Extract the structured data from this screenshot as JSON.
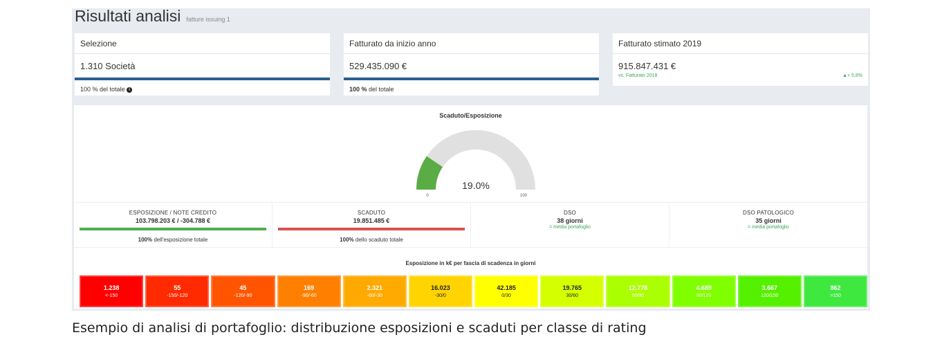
{
  "header": {
    "title": "Risultati analisi",
    "subtitle": "fatture issuing 1"
  },
  "cards": [
    {
      "head": "Selezione",
      "value": "1.310 Società",
      "foot_bold": "",
      "foot": "100 % del totale",
      "has_info": true,
      "bar": true
    },
    {
      "head": "Fatturato da inizio anno",
      "value": "529.435.090 €",
      "foot_bold": "100 %",
      "foot": " del totale",
      "has_info": false,
      "bar": true
    },
    {
      "head": "Fatturato stimato 2019",
      "value": "915.847.431 €",
      "sub_left": "vs. Fatturato 2018",
      "sub_right": "▲+ 5,8%"
    }
  ],
  "gauge": {
    "title": "Scaduto/Esposizione",
    "value_label": "19.0%",
    "value": 19.0,
    "min_label": "0",
    "max_label": "100",
    "fill_color": "#5aac44",
    "track_color": "#e0e0e0"
  },
  "metrics": [
    {
      "label": "ESPOSIZIONE / NOTE CREDITO",
      "value": "103.798.203 € / -304.788 €",
      "bar_color": "#4caf50",
      "foot_bold": "100%",
      "foot": " dell'esposizione totale"
    },
    {
      "label": "SCADUTO",
      "value": "19.851.485 €",
      "bar_color": "#d9534f",
      "foot_bold": "100%",
      "foot": " dello scaduto totale"
    },
    {
      "label": "DSO",
      "value": "38 giorni",
      "note": "= media portafoglio"
    },
    {
      "label": "DSO PATOLOGICO",
      "value": "35 giorni",
      "note": "= media portafoglio"
    }
  ],
  "buckets_title": "Esposizione in k€ per fascia di scadenza in giorni",
  "buckets": [
    {
      "value": "1.238",
      "range": "<-150",
      "color": "#ff0000"
    },
    {
      "value": "55",
      "range": "-150/-120",
      "color": "#ff2a00"
    },
    {
      "value": "45",
      "range": "-120/-90",
      "color": "#ff5500"
    },
    {
      "value": "169",
      "range": "-90/-60",
      "color": "#ff8000"
    },
    {
      "value": "2.321",
      "range": "-60/-30",
      "color": "#ffaa00"
    },
    {
      "value": "16.023",
      "range": "-30/0",
      "color": "#ffd400"
    },
    {
      "value": "42.185",
      "range": "0/30",
      "color": "#ffff00"
    },
    {
      "value": "19.765",
      "range": "30/60",
      "color": "#d4ff00"
    },
    {
      "value": "12.778",
      "range": "60/90",
      "color": "#aaff00"
    },
    {
      "value": "4.689",
      "range": "90/120",
      "color": "#80ff00"
    },
    {
      "value": "3.667",
      "range": "120/150",
      "color": "#55f000"
    },
    {
      "value": "862",
      "range": ">150",
      "color": "#3ee83e"
    }
  ],
  "caption": "Esempio di analisi di portafoglio: distribuzione esposizioni e scaduti per classe di rating"
}
